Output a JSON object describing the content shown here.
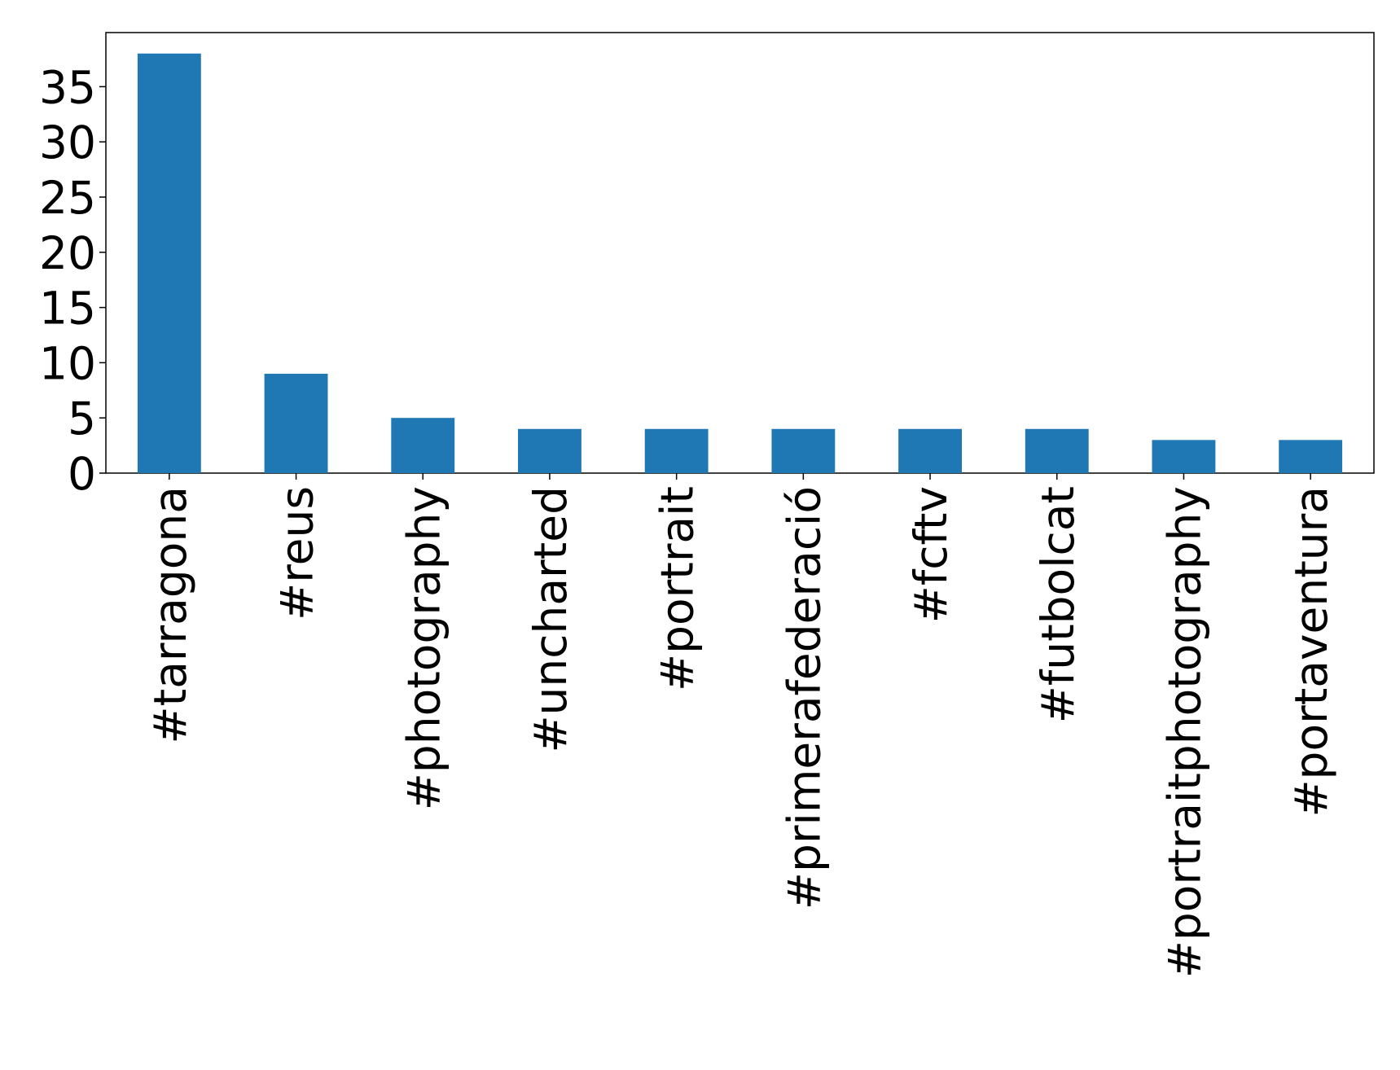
{
  "chart_data": {
    "type": "bar",
    "categories": [
      "#tarragona",
      "#reus",
      "#photography",
      "#uncharted",
      "#portrait",
      "#primerafederació",
      "#fcftv",
      "#futbolcat",
      "#portraitphotography",
      "#portaventura"
    ],
    "values": [
      38,
      9,
      5,
      4,
      4,
      4,
      4,
      4,
      3,
      3
    ],
    "color": "#1f77b4",
    "ylim": [
      0,
      39.9
    ],
    "yticks": [
      0,
      5,
      10,
      15,
      20,
      25,
      30,
      35
    ],
    "grid": false
  }
}
